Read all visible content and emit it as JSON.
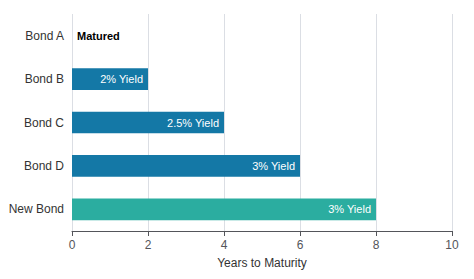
{
  "chart_data": {
    "type": "bar",
    "orientation": "horizontal",
    "categories": [
      "New Bond",
      "Bond D",
      "Bond C",
      "Bond B",
      "Bond A"
    ],
    "values": [
      8,
      6,
      4,
      2,
      0
    ],
    "labels": [
      "3% Yield",
      "3% Yield",
      "2.5% Yield",
      "2% Yield",
      "Matured"
    ],
    "colors": [
      "#2BADA0",
      "#1478A6",
      "#1478A6",
      "#1478A6",
      null
    ],
    "xlabel": "Years to Maturity",
    "xlim": [
      0,
      10
    ],
    "xticks": [
      0,
      2,
      4,
      6,
      8,
      10
    ],
    "grid": true
  }
}
